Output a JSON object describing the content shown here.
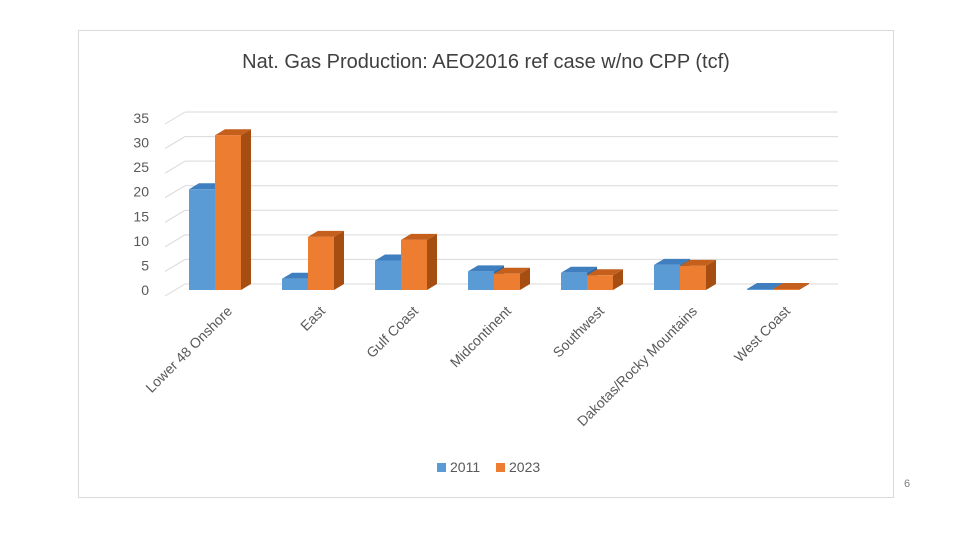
{
  "slide": {
    "page_number": "6"
  },
  "chart_data": {
    "type": "bar",
    "title": "Nat. Gas Production: AEO2016 ref case w/no CPP (tcf)",
    "categories": [
      "Lower 48 Onshore",
      "East",
      "Gulf Coast",
      "Midcontinent",
      "Southwest",
      "Dakotas/Rocky Mountains",
      "West Coast"
    ],
    "series": [
      {
        "name": "2011",
        "values": [
          20.5,
          2.3,
          6.0,
          3.8,
          3.5,
          5.1,
          0.2
        ]
      },
      {
        "name": "2023",
        "values": [
          31.5,
          10.8,
          10.2,
          3.3,
          3.0,
          4.9,
          0.2
        ]
      }
    ],
    "ylim": [
      0,
      35
    ],
    "yticks": [
      "35",
      "30",
      "25",
      "20",
      "15",
      "10",
      "5",
      "0"
    ],
    "xlabel": "",
    "ylabel": "",
    "grid": true,
    "legend": "bottom",
    "colors": {
      "2011": {
        "front": "#5b9bd5",
        "side": "#2e6aa6",
        "top": "#3f7ebf"
      },
      "2023": {
        "front": "#ed7d31",
        "side": "#a64d12",
        "top": "#c45f1c"
      },
      "grid": "#d9d9d9",
      "axis_text": "#595959",
      "title": "#404040"
    }
  }
}
